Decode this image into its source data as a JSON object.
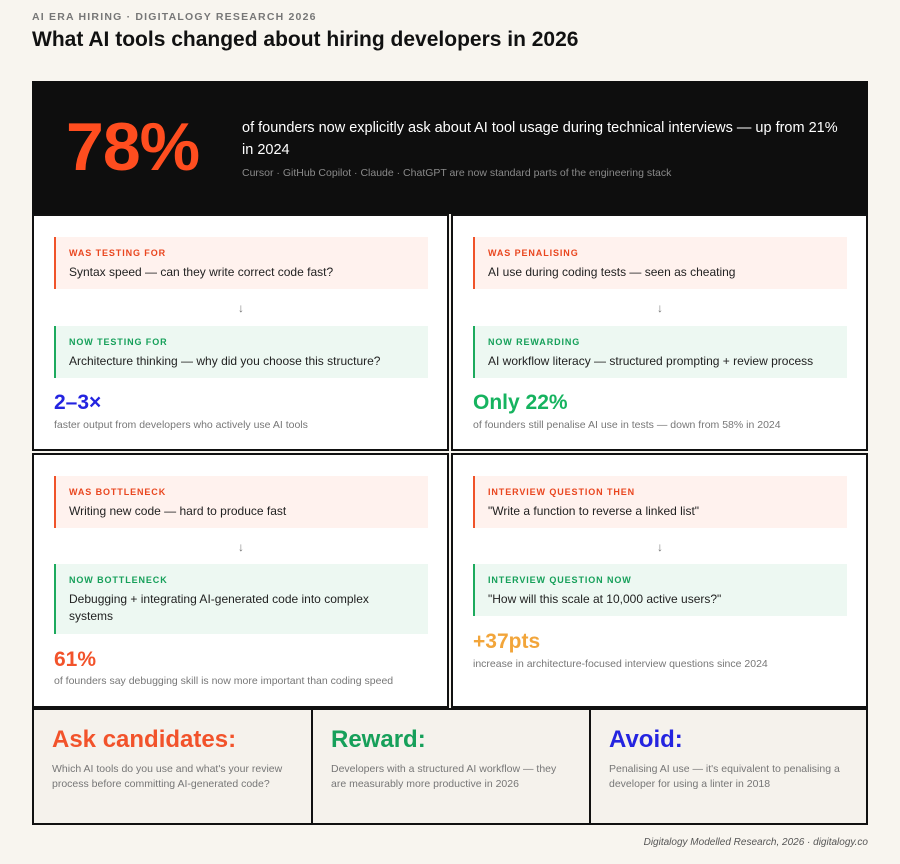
{
  "header": {
    "eyebrow": "AI ERA HIRING · DIGITALOGY RESEARCH 2026",
    "title": "What AI tools changed about hiring developers in 2026"
  },
  "hero": {
    "big_stat": "78%",
    "text": "of founders now explicitly ask about AI tool usage during technical interviews — up from 21% in 2024",
    "subtext": "Cursor · GitHub Copilot · Claude · ChatGPT are now standard parts of the engineering stack",
    "accent_color": "#ff4d1f"
  },
  "panels": [
    {
      "old_label": "WAS TESTING FOR",
      "old_text": "Syntax speed — can they write correct code fast?",
      "arrow": "↓",
      "new_label": "NOW TESTING FOR",
      "new_text": "Architecture thinking — why did you choose this structure?",
      "stat": "2–3×",
      "stat_color": "#2424e0",
      "caption": "faster output from developers who actively use AI tools"
    },
    {
      "old_label": "WAS PENALISING",
      "old_text": "AI use during coding tests — seen as cheating",
      "arrow": "↓",
      "new_label": "NOW REWARDING",
      "new_text": "AI workflow literacy — structured prompting + review process",
      "stat": "Only 22%",
      "stat_color": "#16b35f",
      "caption": "of founders still penalise AI use in tests — down from 58% in 2024"
    },
    {
      "old_label": "WAS BOTTLENECK",
      "old_text": "Writing new code — hard to produce fast",
      "arrow": "↓",
      "new_label": "NOW BOTTLENECK",
      "new_text": "Debugging + integrating AI-generated code into complex systems",
      "stat": "61%",
      "stat_color": "#f2532b",
      "caption": "of founders say debugging skill is now more important than coding speed"
    },
    {
      "old_label": "INTERVIEW QUESTION THEN",
      "old_text": "\"Write a function to reverse a linked list\"",
      "arrow": "↓",
      "new_label": "INTERVIEW QUESTION NOW",
      "new_text": "\"How will this scale at 10,000 active users?\"",
      "stat": "+37pts",
      "stat_color": "#f2a53a",
      "caption": "increase in architecture-focused interview questions since 2024"
    }
  ],
  "bottom": [
    {
      "heading": "Ask candidates:",
      "color": "#f2532b",
      "text": "Which AI tools do you use and what's your review process before committing AI-generated code?"
    },
    {
      "heading": "Reward:",
      "color": "#16a05a",
      "text": "Developers with a structured AI workflow — they are measurably more productive in 2026"
    },
    {
      "heading": "Avoid:",
      "color": "#2424e0",
      "text": "Penalising AI use — it's equivalent to penalising a developer for using a linter in 2018"
    }
  ],
  "footer": "Digitalogy Modelled Research, 2026 · digitalogy.co"
}
